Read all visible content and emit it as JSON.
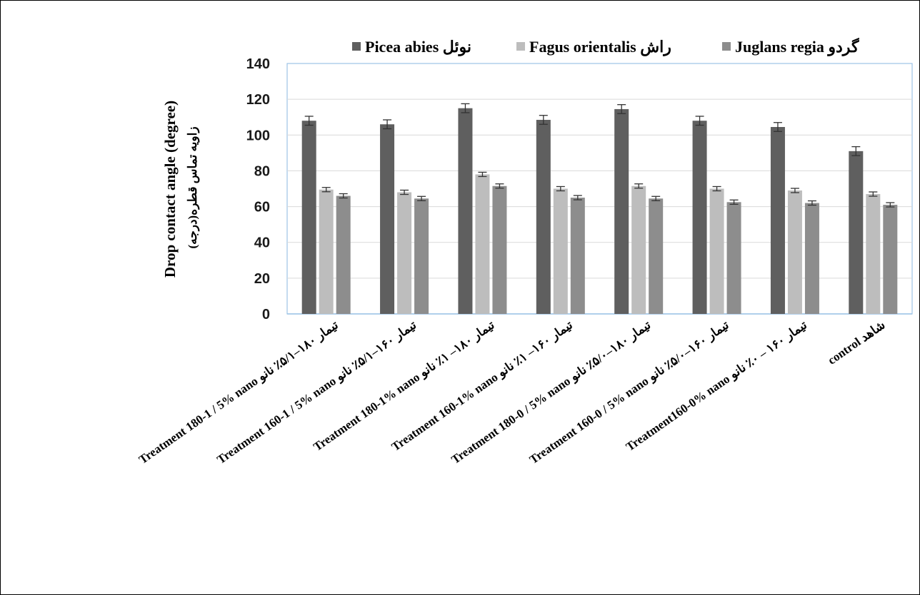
{
  "chart_data": {
    "type": "bar",
    "title": "",
    "ylabel": "Drop contact angle (degree)",
    "ylabel_fa": "زاویه تماس قطره(درجه)",
    "xlabel": "",
    "ylim": [
      0,
      140
    ],
    "yticks": [
      0,
      20,
      40,
      60,
      80,
      100,
      120,
      140
    ],
    "grid": true,
    "legend_position": "top",
    "error_bars": true,
    "categories": [
      "Treatment 180-1 / 5% nano  تیمار ۱۸۰–۵/۱٪ نانو",
      "Treatment 160-1 / 5% nano  تیمار ۱۶۰–۵/۱٪ نانو",
      "Treatment 180-1% nano  تیمار ۱۸۰– ۱٪ نانو",
      "Treatment 160-1% nano  تیمار ۱۶۰– ۱٪ نانو",
      "Treatment 180-0 / 5% nano  تیمار ۱۸۰–۵/۰٪ نانو",
      "Treatment 160-0 / 5% nano  تیمار ۱۶۰–۵/۰٪ نانو",
      "Treatment160-0% nano  تیمار ۱۶۰ – ۰٪ نانو",
      "control شاهد"
    ],
    "series": [
      {
        "name": "Picea abies",
        "name_fa": "نوئل",
        "color": "#5f5f5f",
        "values": [
          108,
          106,
          115,
          108.5,
          114.5,
          108,
          104.5,
          91
        ],
        "errors": [
          2.5,
          2.5,
          2.5,
          2.5,
          2.5,
          2.5,
          2.5,
          2.5
        ]
      },
      {
        "name": "Fagus orientalis",
        "name_fa": "راش",
        "color": "#bdbdbd",
        "values": [
          69.5,
          68,
          78,
          70,
          71.5,
          70,
          69,
          67
        ],
        "errors": [
          1.2,
          1.2,
          1.2,
          1.2,
          1.2,
          1.2,
          1.2,
          1.2
        ]
      },
      {
        "name": "Juglans regia",
        "name_fa": "گردو",
        "color": "#8d8d8d",
        "values": [
          66,
          64.5,
          71.5,
          65,
          64.5,
          62.5,
          62,
          61
        ],
        "errors": [
          1.2,
          1.2,
          1.2,
          1.2,
          1.2,
          1.2,
          1.2,
          1.2
        ]
      }
    ]
  }
}
